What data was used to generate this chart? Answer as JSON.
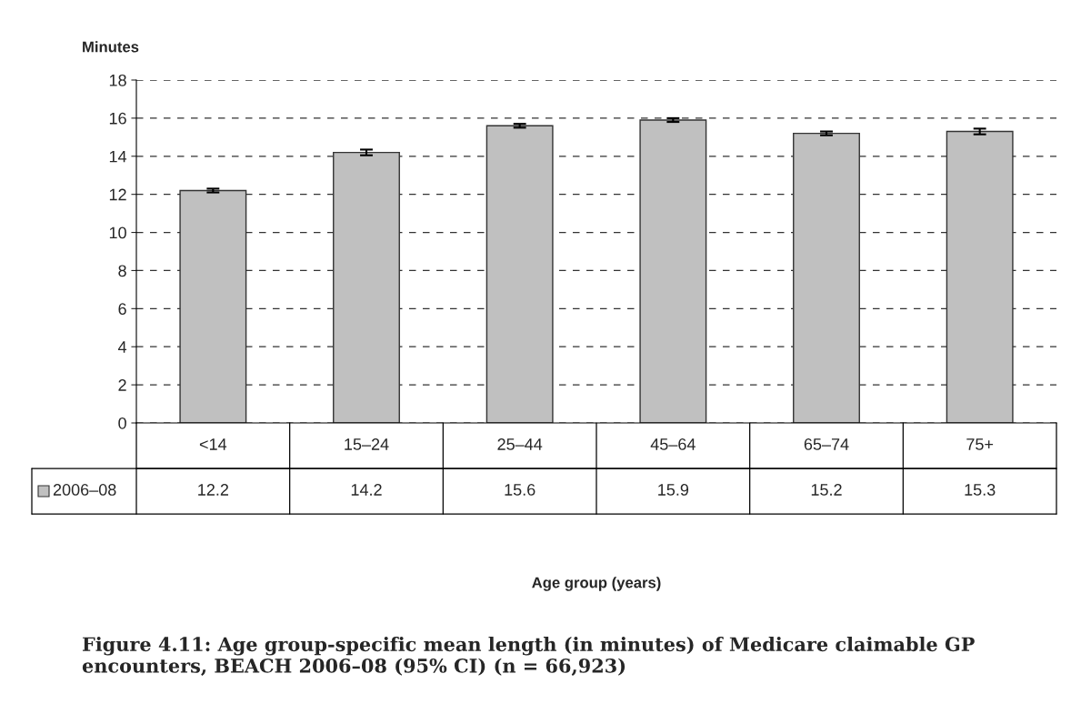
{
  "chart_data": {
    "type": "bar",
    "title": "Figure 4.11: Age group-specific mean length (in minutes) of Medicare claimable GP encounters, BEACH 2006–08 (95% CI) (n = 66,923)",
    "annotations": [
      "Age group (years)"
    ],
    "ylabel": "Minutes",
    "categories": [
      "<14",
      "15–24",
      "25–44",
      "45–64",
      "65–74",
      "75+"
    ],
    "series": [
      {
        "name": "2006–08",
        "color": "#c0c0c0",
        "values": [
          12.2,
          14.2,
          15.6,
          15.9,
          15.2,
          15.3
        ],
        "errors": [
          0.1,
          0.15,
          0.1,
          0.1,
          0.1,
          0.15
        ]
      }
    ],
    "ylim": [
      0,
      18
    ],
    "yticks": [
      0,
      2,
      4,
      6,
      8,
      10,
      12,
      14,
      16,
      18
    ],
    "grid": "y",
    "data_labels": true
  }
}
